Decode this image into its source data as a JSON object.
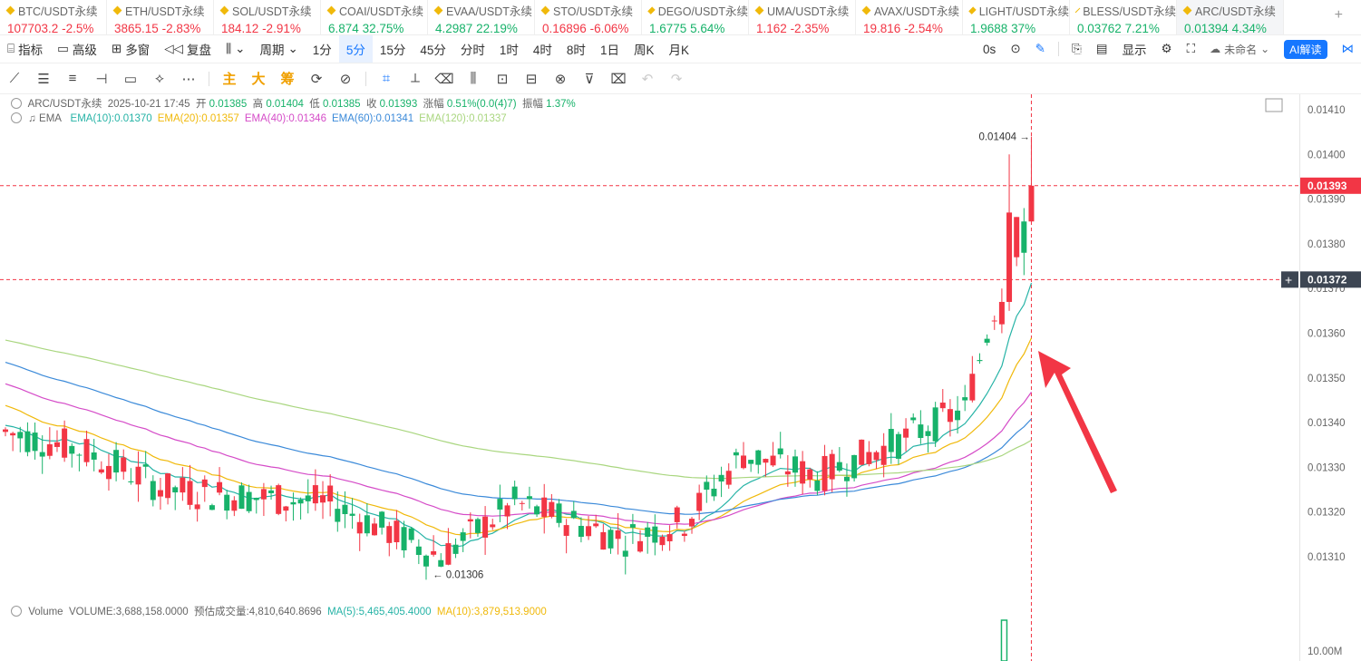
{
  "tickers": [
    {
      "symbol": "BTC/USDT永续",
      "price": "107703.2",
      "change": "-2.5%",
      "dir": "down"
    },
    {
      "symbol": "ETH/USDT永续",
      "price": "3865.15",
      "change": "-2.83%",
      "dir": "down"
    },
    {
      "symbol": "SOL/USDT永续",
      "price": "184.12",
      "change": "-2.91%",
      "dir": "down"
    },
    {
      "symbol": "COAI/USDT永续",
      "price": "6.874",
      "change": "32.75%",
      "dir": "up"
    },
    {
      "symbol": "EVAA/USDT永续",
      "price": "4.2987",
      "change": "22.19%",
      "dir": "up"
    },
    {
      "symbol": "STO/USDT永续",
      "price": "0.16896",
      "change": "-6.06%",
      "dir": "down"
    },
    {
      "symbol": "DEGO/USDT永续",
      "price": "1.6775",
      "change": "5.64%",
      "dir": "up"
    },
    {
      "symbol": "UMA/USDT永续",
      "price": "1.162",
      "change": "-2.35%",
      "dir": "down"
    },
    {
      "symbol": "AVAX/USDT永续",
      "price": "19.816",
      "change": "-2.54%",
      "dir": "down"
    },
    {
      "symbol": "LIGHT/USDT永续",
      "price": "1.9688",
      "change": "37%",
      "dir": "up"
    },
    {
      "symbol": "BLESS/USDT永续",
      "price": "0.03762",
      "change": "7.21%",
      "dir": "up"
    },
    {
      "symbol": "ARC/USDT永续",
      "price": "0.01394",
      "change": "4.34%",
      "dir": "up",
      "active": true
    }
  ],
  "toolbar1": {
    "indicator": "指标",
    "advanced": "高级",
    "multi": "多窗",
    "replay": "复盘",
    "period": "周期",
    "intervals": [
      "1分",
      "5分",
      "15分",
      "45分",
      "分时",
      "1时",
      "4时",
      "8时",
      "1日",
      "周K",
      "月K"
    ],
    "selected_interval": "5分",
    "right": {
      "zero_s": "0s",
      "display": "显示",
      "unnamed": "未命名",
      "ai": "AI解读"
    }
  },
  "toolbar2": {
    "labels": [
      "主",
      "大",
      "筹"
    ]
  },
  "legend": {
    "pair": "ARC/USDT永续",
    "date": "2025-10-21 17:45",
    "open_label": "开",
    "open": "0.01385",
    "high_label": "高",
    "high": "0.01404",
    "low_label": "低",
    "low": "0.01385",
    "close_label": "收",
    "close": "0.01393",
    "chg_label": "涨幅",
    "chg": "0.51%(0.0(4)7)",
    "amp_label": "振幅",
    "amp": "1.37%"
  },
  "ema_legend": {
    "label": "EMA",
    "items": [
      {
        "text": "EMA(10):0.01370",
        "color": "#26b3a6"
      },
      {
        "text": "EMA(20):0.01357",
        "color": "#f0b90b"
      },
      {
        "text": "EMA(40):0.01346",
        "color": "#d54cc8"
      },
      {
        "text": "EMA(60):0.01341",
        "color": "#3b8ad9"
      },
      {
        "text": "EMA(120):0.01337",
        "color": "#a9d67f"
      }
    ]
  },
  "volume_legend": {
    "label": "Volume",
    "volume": "VOLUME:3,688,158.0000",
    "est": "预估成交量:4,810,640.8696",
    "ma5": "MA(5):5,465,405.4000",
    "ma10": "MA(10):3,879,513.9000"
  },
  "chart_data": {
    "type": "candlestick",
    "y_ticks": [
      "0.01410",
      "0.01400",
      "0.01390",
      "0.01380",
      "0.01370",
      "0.01360",
      "0.01350",
      "0.01340",
      "0.01330",
      "0.01320",
      "0.01310"
    ],
    "volume_tick": "10.00M",
    "current_price": "0.01393",
    "crosshair_price": "0.01372",
    "high_label": "0.01404",
    "low_label": "0.01306",
    "colors": {
      "up": "#17b26a",
      "down": "#f23645"
    }
  }
}
